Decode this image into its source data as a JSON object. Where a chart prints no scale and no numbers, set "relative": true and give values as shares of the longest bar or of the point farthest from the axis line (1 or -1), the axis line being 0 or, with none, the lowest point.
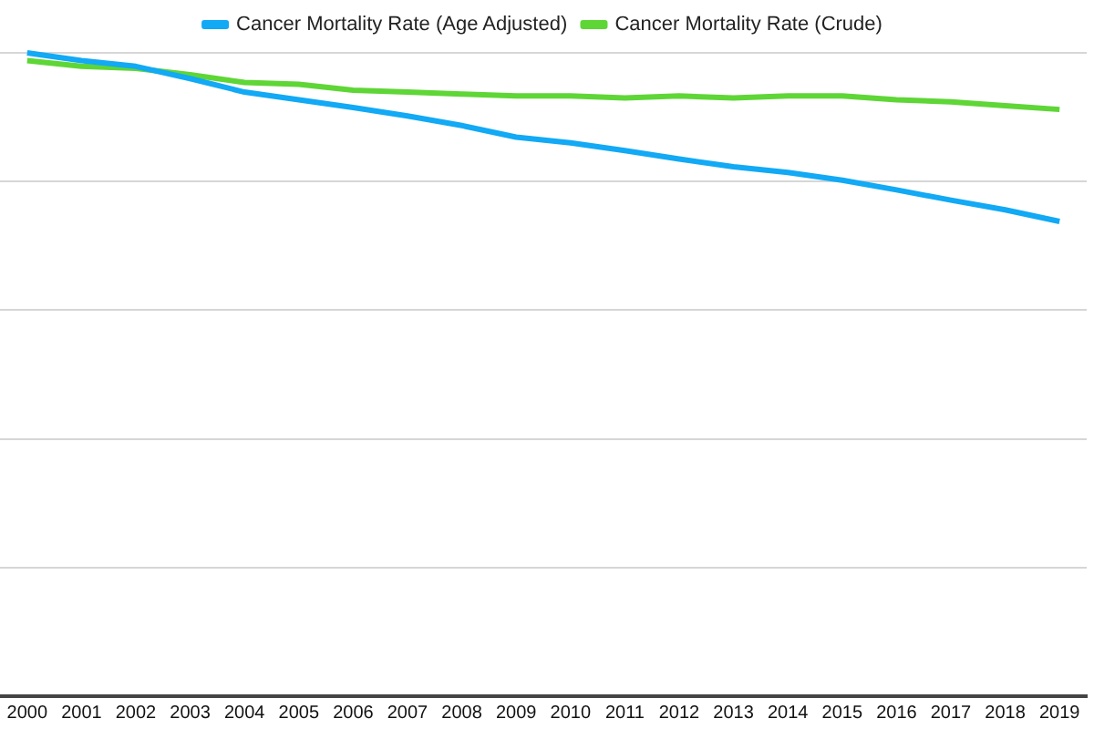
{
  "chart_data": {
    "type": "line",
    "relative": true,
    "categories": [
      "2000",
      "2001",
      "2002",
      "2003",
      "2004",
      "2005",
      "2006",
      "2007",
      "2008",
      "2009",
      "2010",
      "2011",
      "2012",
      "2013",
      "2014",
      "2015",
      "2016",
      "2017",
      "2018",
      "2019"
    ],
    "series": [
      {
        "name": "Cancer Mortality Rate (Age Adjusted)",
        "color": "#12a9f5",
        "values": [
          1,
          0.988,
          0.979,
          0.96,
          0.939,
          0.927,
          0.915,
          0.902,
          0.887,
          0.869,
          0.86,
          0.848,
          0.835,
          0.823,
          0.814,
          0.802,
          0.787,
          0.771,
          0.756,
          0.738
        ]
      },
      {
        "name": "Cancer Mortality Rate (Crude)",
        "color": "#5ed636",
        "values": [
          0.988,
          0.979,
          0.976,
          0.966,
          0.954,
          0.951,
          0.942,
          0.939,
          0.936,
          0.933,
          0.933,
          0.93,
          0.933,
          0.93,
          0.933,
          0.933,
          0.927,
          0.924,
          0.918,
          0.912
        ]
      }
    ],
    "grid": "y",
    "legend": "top",
    "marker": "none",
    "line_style": "solid"
  }
}
